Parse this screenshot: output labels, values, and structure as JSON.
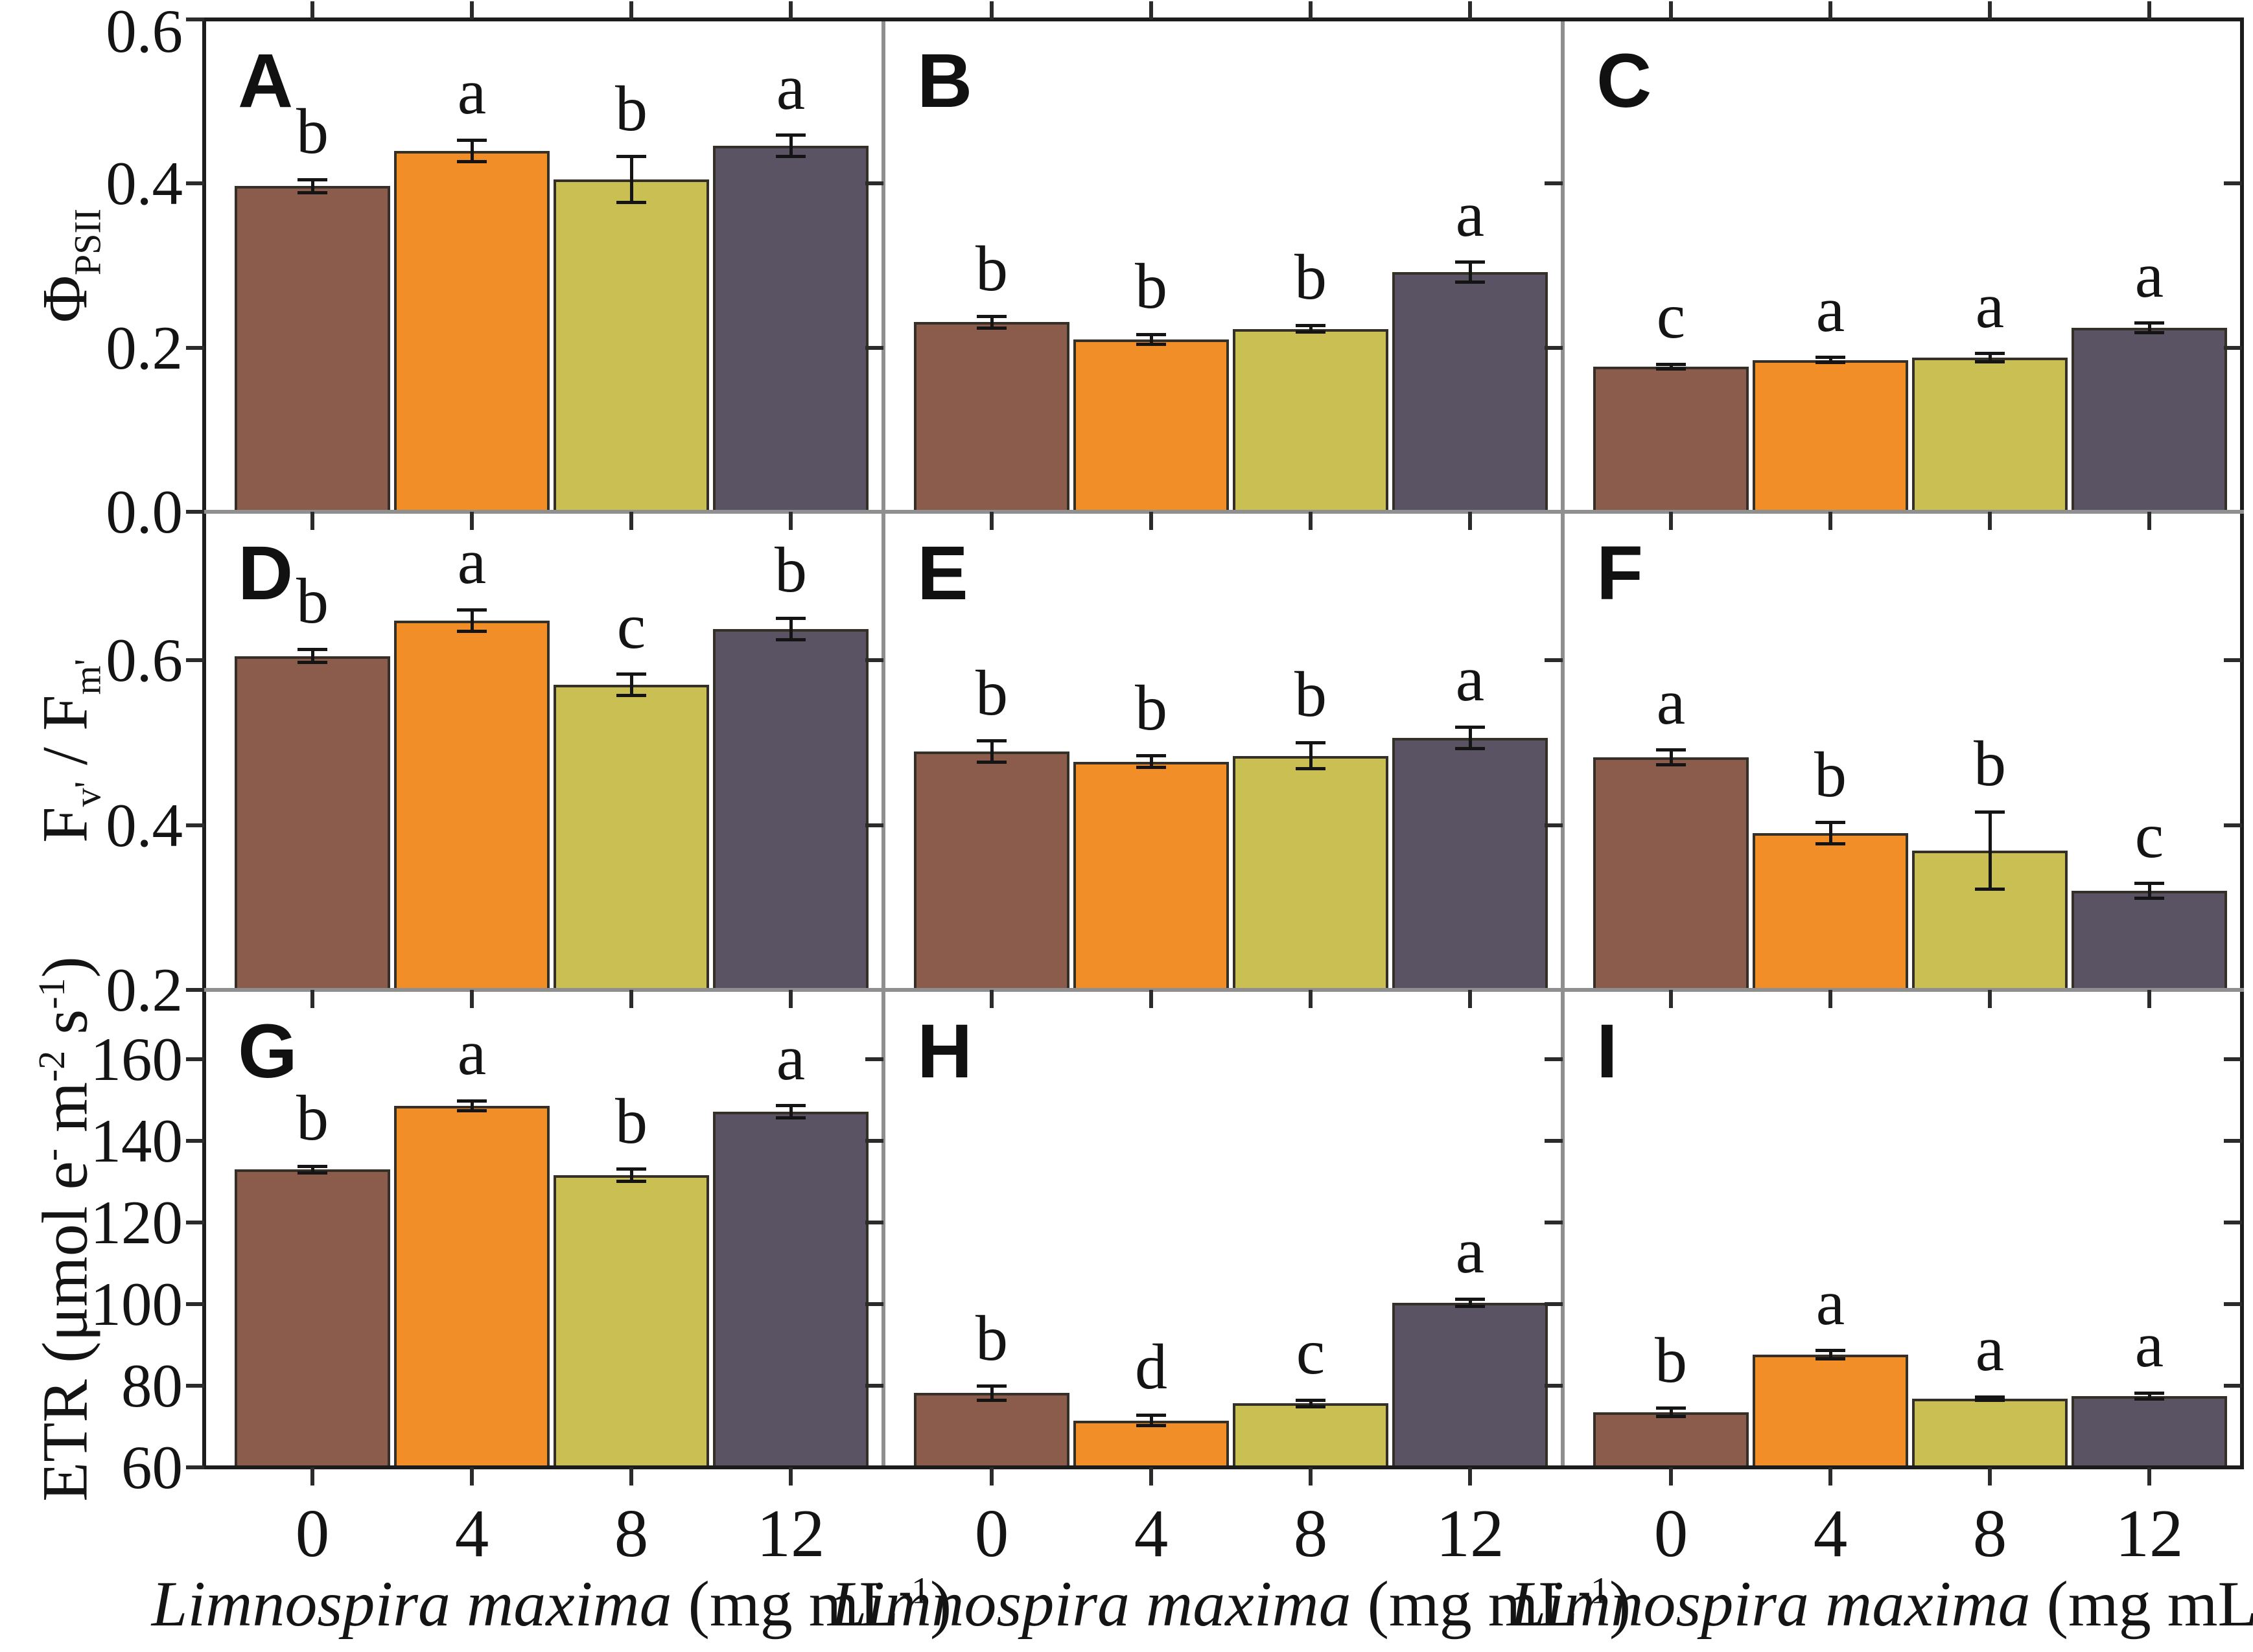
{
  "figure": {
    "background": "#ffffff",
    "frame_color": "#1c1c1c",
    "inner_line_color": "#8f8f8f",
    "bar_edge_color": "#343028",
    "bar_colors": [
      "#8B5C4B",
      "#F18E28",
      "#CABF52",
      "#5A5363"
    ],
    "category_labels": [
      "0",
      "4",
      "8",
      "12"
    ]
  },
  "chart_data": {
    "type": "bar",
    "grid": false,
    "legend": "none",
    "categories": [
      0,
      4,
      8,
      12
    ],
    "x_title": "Limnospira maxima (mg mL-1)",
    "x_title_parts": [
      [
        "i",
        "Limnospira maxima"
      ],
      [
        "n",
        " (mg mL"
      ],
      [
        "sup",
        "-1"
      ],
      [
        "n",
        ")"
      ]
    ],
    "rows": [
      {
        "ylabel": "Phi_PSII",
        "ylabel_parts": [
          [
            "n",
            "Φ"
          ],
          [
            "sub",
            "PSII"
          ]
        ],
        "ylim": [
          0.0,
          0.6
        ],
        "yticks": [
          0.0,
          0.2,
          0.4,
          0.6
        ],
        "ytick_labels": [
          "0.0",
          "0.2",
          "0.4",
          "0.6"
        ]
      },
      {
        "ylabel": "Fv'/Fm'",
        "ylabel_parts": [
          [
            "n",
            "F"
          ],
          [
            "sub",
            "v'"
          ],
          [
            "n",
            " / F"
          ],
          [
            "sub",
            "m'"
          ]
        ],
        "ylim": [
          0.2,
          0.78
        ],
        "yticks": [
          0.2,
          0.4,
          0.6
        ],
        "ytick_labels": [
          "0.2",
          "0.4",
          "0.6"
        ]
      },
      {
        "ylabel": "ETR (umol e- m-2 s-1)",
        "ylabel_parts": [
          [
            "n",
            "ETR (μmol e"
          ],
          [
            "sup",
            "-"
          ],
          [
            "n",
            " m"
          ],
          [
            "sup",
            "-2"
          ],
          [
            "n",
            " s"
          ],
          [
            "sup",
            "-1"
          ],
          [
            "n",
            ")"
          ]
        ],
        "ylim": [
          60,
          177
        ],
        "yticks": [
          60,
          80,
          100,
          120,
          140,
          160
        ],
        "ytick_labels": [
          "60",
          "80",
          "100",
          "120",
          "140",
          "160"
        ]
      }
    ],
    "panels": [
      {
        "label": "A",
        "row": 0,
        "col": 0,
        "values": [
          0.397,
          0.44,
          0.405,
          0.446
        ],
        "errors": [
          0.008,
          0.013,
          0.028,
          0.013
        ],
        "sig_letters": [
          "b",
          "a",
          "b",
          "a"
        ]
      },
      {
        "label": "B",
        "row": 0,
        "col": 1,
        "values": [
          0.231,
          0.21,
          0.223,
          0.292
        ],
        "errors": [
          0.007,
          0.006,
          0.004,
          0.012
        ],
        "sig_letters": [
          "b",
          "b",
          "b",
          "a"
        ]
      },
      {
        "label": "C",
        "row": 0,
        "col": 2,
        "values": [
          0.177,
          0.185,
          0.188,
          0.224
        ],
        "errors": [
          0.003,
          0.003,
          0.005,
          0.006
        ],
        "sig_letters": [
          "c",
          "a",
          "a",
          "a"
        ]
      },
      {
        "label": "D",
        "row": 1,
        "col": 0,
        "values": [
          0.605,
          0.648,
          0.57,
          0.638
        ],
        "errors": [
          0.008,
          0.013,
          0.013,
          0.013
        ],
        "sig_letters": [
          "b",
          "a",
          "c",
          "b"
        ]
      },
      {
        "label": "E",
        "row": 1,
        "col": 1,
        "values": [
          0.489,
          0.477,
          0.484,
          0.506
        ],
        "errors": [
          0.013,
          0.007,
          0.016,
          0.013
        ],
        "sig_letters": [
          "b",
          "b",
          "b",
          "a"
        ]
      },
      {
        "label": "F",
        "row": 1,
        "col": 2,
        "values": [
          0.482,
          0.39,
          0.369,
          0.32
        ],
        "errors": [
          0.009,
          0.013,
          0.047,
          0.009
        ],
        "sig_letters": [
          "a",
          "b",
          "b",
          "c"
        ]
      },
      {
        "label": "G",
        "row": 2,
        "col": 0,
        "values": [
          133.0,
          148.6,
          131.6,
          147.1
        ],
        "errors": [
          0.8,
          1.2,
          1.5,
          1.5
        ],
        "sig_letters": [
          "b",
          "a",
          "b",
          "a"
        ]
      },
      {
        "label": "H",
        "row": 2,
        "col": 1,
        "values": [
          78.2,
          71.5,
          75.7,
          100.3
        ],
        "errors": [
          1.7,
          1.3,
          0.8,
          0.9
        ],
        "sig_letters": [
          "b",
          "d",
          "c",
          "a"
        ]
      },
      {
        "label": "I",
        "row": 2,
        "col": 2,
        "values": [
          73.5,
          87.6,
          76.9,
          77.5
        ],
        "errors": [
          1.0,
          1.0,
          0.4,
          0.7
        ],
        "sig_letters": [
          "b",
          "a",
          "a",
          "a"
        ]
      }
    ]
  }
}
